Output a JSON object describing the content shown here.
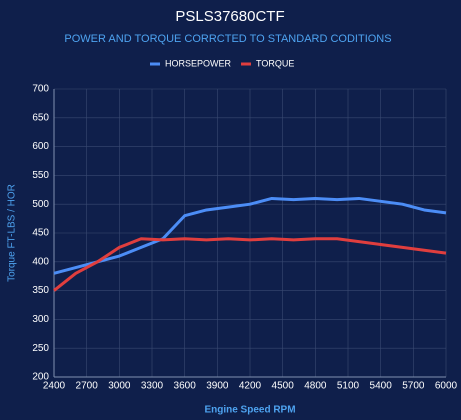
{
  "chart_data": {
    "type": "line",
    "title": "PSLS37680CTF",
    "subtitle": "POWER AND TORQUE CORRCTED TO STANDARD CODITIONS",
    "xlabel": "Engine Speed RPM",
    "ylabel": "Torque FT-LBS / HOR",
    "x": [
      2400,
      2600,
      2800,
      3000,
      3200,
      3400,
      3600,
      3800,
      4000,
      4200,
      4400,
      4600,
      4800,
      5000,
      5200,
      5400,
      5600,
      5800,
      6000
    ],
    "series": [
      {
        "name": "HORSEPOWER",
        "color": "#4c8df6",
        "values": [
          380,
          390,
          400,
          410,
          425,
          440,
          480,
          490,
          495,
          500,
          510,
          508,
          510,
          508,
          510,
          505,
          500,
          490,
          485
        ]
      },
      {
        "name": "TORQUE",
        "color": "#e03e3e",
        "values": [
          350,
          380,
          400,
          425,
          440,
          438,
          440,
          438,
          440,
          438,
          440,
          438,
          440,
          440,
          435,
          430,
          425,
          420,
          415
        ]
      }
    ],
    "xlim": [
      2400,
      6000
    ],
    "xticks": [
      2400,
      2700,
      3000,
      3300,
      3600,
      3900,
      4200,
      4500,
      4800,
      5100,
      5400,
      5700,
      6000
    ],
    "ylim": [
      200,
      700
    ],
    "yticks": [
      200,
      250,
      300,
      350,
      400,
      450,
      500,
      550,
      600,
      650,
      700
    ],
    "grid": true
  }
}
